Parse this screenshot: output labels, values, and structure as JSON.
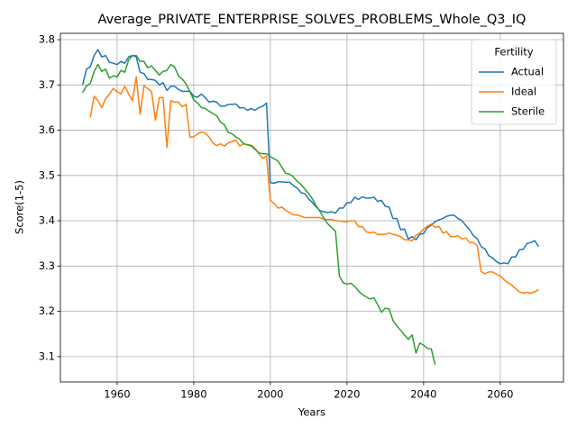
{
  "chart_data": {
    "type": "line",
    "title": "Average_PRIVATE_ENTERPRISE_SOLVES_PROBLEMS_Whole_Q3_IQ",
    "x_label": "Years",
    "y_label": "Score(1-5)",
    "legend_title": "Fertility",
    "legend_position": "upper right",
    "grid": true,
    "xlim": [
      1945.2,
      2076.5
    ],
    "ylim": [
      3.044,
      3.814
    ],
    "xticks": [
      1960,
      1980,
      2000,
      2020,
      2040,
      2060
    ],
    "yticks": [
      3.1,
      3.2,
      3.3,
      3.4,
      3.5,
      3.6,
      3.7,
      3.8
    ],
    "x": [
      1951,
      1952,
      1953,
      1954,
      1955,
      1956,
      1957,
      1958,
      1959,
      1960,
      1961,
      1962,
      1963,
      1964,
      1965,
      1966,
      1967,
      1968,
      1969,
      1970,
      1971,
      1972,
      1973,
      1974,
      1975,
      1976,
      1977,
      1978,
      1979,
      1980,
      1981,
      1982,
      1983,
      1984,
      1985,
      1986,
      1987,
      1988,
      1989,
      1990,
      1991,
      1992,
      1993,
      1994,
      1995,
      1996,
      1997,
      1998,
      1999,
      2000,
      2001,
      2002,
      2003,
      2004,
      2005,
      2006,
      2007,
      2008,
      2009,
      2010,
      2011,
      2012,
      2013,
      2014,
      2015,
      2016,
      2017,
      2018,
      2019,
      2020,
      2021,
      2022,
      2023,
      2024,
      2025,
      2026,
      2027,
      2028,
      2029,
      2030,
      2031,
      2032,
      2033,
      2034,
      2035,
      2036,
      2037,
      2038,
      2039,
      2040,
      2041,
      2042,
      2043,
      2044,
      2045,
      2046,
      2047,
      2048,
      2049,
      2050,
      2051,
      2052,
      2053,
      2054,
      2055,
      2056,
      2057,
      2058,
      2059,
      2060,
      2061,
      2062,
      2063,
      2064,
      2065,
      2066,
      2067,
      2068,
      2069,
      2070
    ],
    "series": [
      {
        "name": "Actual",
        "color": "#1f77b4",
        "values": [
          3.7,
          3.735,
          3.74,
          3.765,
          3.778,
          3.762,
          3.765,
          3.75,
          3.748,
          3.745,
          3.752,
          3.748,
          3.762,
          3.765,
          3.762,
          3.728,
          3.725,
          3.712,
          3.712,
          3.71,
          3.7,
          3.705,
          3.688,
          3.697,
          3.697,
          3.69,
          3.686,
          3.686,
          3.686,
          3.675,
          3.673,
          3.68,
          3.672,
          3.662,
          3.664,
          3.662,
          3.653,
          3.653,
          3.657,
          3.657,
          3.658,
          3.649,
          3.65,
          3.644,
          3.648,
          3.644,
          3.65,
          3.653,
          3.66,
          3.484,
          3.483,
          3.486,
          3.486,
          3.485,
          3.485,
          3.478,
          3.472,
          3.462,
          3.46,
          3.448,
          3.44,
          3.43,
          3.422,
          3.42,
          3.418,
          3.42,
          3.417,
          3.428,
          3.428,
          3.44,
          3.44,
          3.452,
          3.447,
          3.453,
          3.45,
          3.45,
          3.452,
          3.443,
          3.445,
          3.432,
          3.43,
          3.405,
          3.405,
          3.38,
          3.382,
          3.36,
          3.365,
          3.358,
          3.37,
          3.372,
          3.385,
          3.39,
          3.398,
          3.402,
          3.405,
          3.41,
          3.412,
          3.412,
          3.405,
          3.4,
          3.39,
          3.38,
          3.367,
          3.36,
          3.343,
          3.338,
          3.323,
          3.318,
          3.31,
          3.305,
          3.307,
          3.305,
          3.32,
          3.32,
          3.336,
          3.337,
          3.35,
          3.352,
          3.356,
          3.343
        ]
      },
      {
        "name": "Ideal",
        "color": "#ff7f0e",
        "values": [
          null,
          null,
          3.628,
          3.675,
          3.665,
          3.65,
          3.67,
          3.68,
          3.692,
          3.685,
          3.68,
          3.697,
          3.68,
          3.665,
          3.718,
          3.635,
          3.698,
          3.692,
          3.685,
          3.622,
          3.672,
          3.672,
          3.562,
          3.665,
          3.662,
          3.662,
          3.652,
          3.657,
          3.585,
          3.585,
          3.592,
          3.596,
          3.594,
          3.585,
          3.572,
          3.566,
          3.57,
          3.565,
          3.572,
          3.575,
          3.578,
          3.565,
          3.57,
          3.568,
          3.567,
          3.56,
          3.548,
          3.538,
          3.543,
          3.445,
          3.438,
          3.428,
          3.43,
          3.423,
          3.418,
          3.413,
          3.413,
          3.41,
          3.407,
          3.407,
          3.407,
          3.407,
          3.407,
          3.403,
          3.403,
          3.403,
          3.4,
          3.4,
          3.398,
          3.398,
          3.4,
          3.4,
          3.387,
          3.387,
          3.376,
          3.373,
          3.375,
          3.37,
          3.37,
          3.37,
          3.373,
          3.37,
          3.368,
          3.365,
          3.358,
          3.358,
          3.356,
          3.368,
          3.373,
          3.382,
          3.388,
          3.393,
          3.385,
          3.388,
          3.373,
          3.376,
          3.365,
          3.365,
          3.367,
          3.36,
          3.362,
          3.352,
          3.352,
          3.345,
          3.288,
          3.283,
          3.287,
          3.287,
          3.282,
          3.278,
          3.27,
          3.263,
          3.258,
          3.25,
          3.243,
          3.24,
          3.242,
          3.24,
          3.243,
          3.248
        ]
      },
      {
        "name": "Sterile",
        "color": "#2ca02c",
        "values": [
          3.683,
          3.698,
          3.703,
          3.73,
          3.745,
          3.73,
          3.735,
          3.715,
          3.72,
          3.718,
          3.732,
          3.728,
          3.755,
          3.765,
          3.765,
          3.752,
          3.752,
          3.738,
          3.742,
          3.732,
          3.722,
          3.73,
          3.732,
          3.745,
          3.74,
          3.72,
          3.713,
          3.702,
          3.685,
          3.667,
          3.66,
          3.65,
          3.648,
          3.642,
          3.637,
          3.632,
          3.618,
          3.612,
          3.595,
          3.592,
          3.585,
          3.58,
          3.57,
          3.568,
          3.565,
          3.558,
          3.55,
          3.548,
          3.548,
          3.542,
          3.537,
          3.532,
          3.518,
          3.505,
          3.503,
          3.497,
          3.487,
          3.48,
          3.47,
          3.46,
          3.448,
          3.432,
          3.42,
          3.405,
          3.393,
          3.385,
          3.377,
          3.278,
          3.263,
          3.26,
          3.262,
          3.255,
          3.245,
          3.237,
          3.232,
          3.227,
          3.23,
          3.215,
          3.198,
          3.207,
          3.205,
          3.18,
          3.168,
          3.158,
          3.148,
          3.138,
          3.148,
          3.108,
          3.13,
          3.125,
          3.118,
          3.117,
          3.082,
          null,
          null,
          null,
          null,
          null,
          null,
          null,
          null,
          null,
          null,
          null,
          null,
          null,
          null,
          null,
          null,
          null,
          null,
          null,
          null,
          null,
          null,
          null,
          null,
          null,
          null,
          null
        ]
      }
    ]
  }
}
